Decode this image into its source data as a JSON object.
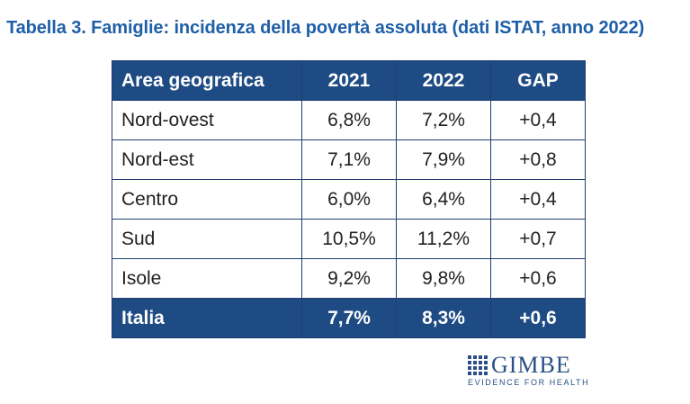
{
  "title": "Tabella 3. Famiglie: incidenza della povertà assoluta (dati ISTAT, anno 2022)",
  "table": {
    "headers": [
      "Area geografica",
      "2021",
      "2022",
      "GAP"
    ],
    "rows": [
      [
        "Nord-ovest",
        "6,8%",
        "7,2%",
        "+0,4"
      ],
      [
        "Nord-est",
        "7,1%",
        "7,9%",
        "+0,8"
      ],
      [
        "Centro",
        "6,0%",
        "6,4%",
        "+0,4"
      ],
      [
        "Sud",
        "10,5%",
        "11,2%",
        "+0,7"
      ],
      [
        "Isole",
        "9,2%",
        "9,8%",
        "+0,6"
      ]
    ],
    "total": [
      "Italia",
      "7,7%",
      "8,3%",
      "+0,6"
    ]
  },
  "logo": {
    "name": "GIMBE",
    "tagline": "EVIDENCE FOR HEALTH",
    "color": "#2a4f86"
  },
  "colors": {
    "title": "#1f5fa8",
    "header_bg": "#1e4b84"
  }
}
